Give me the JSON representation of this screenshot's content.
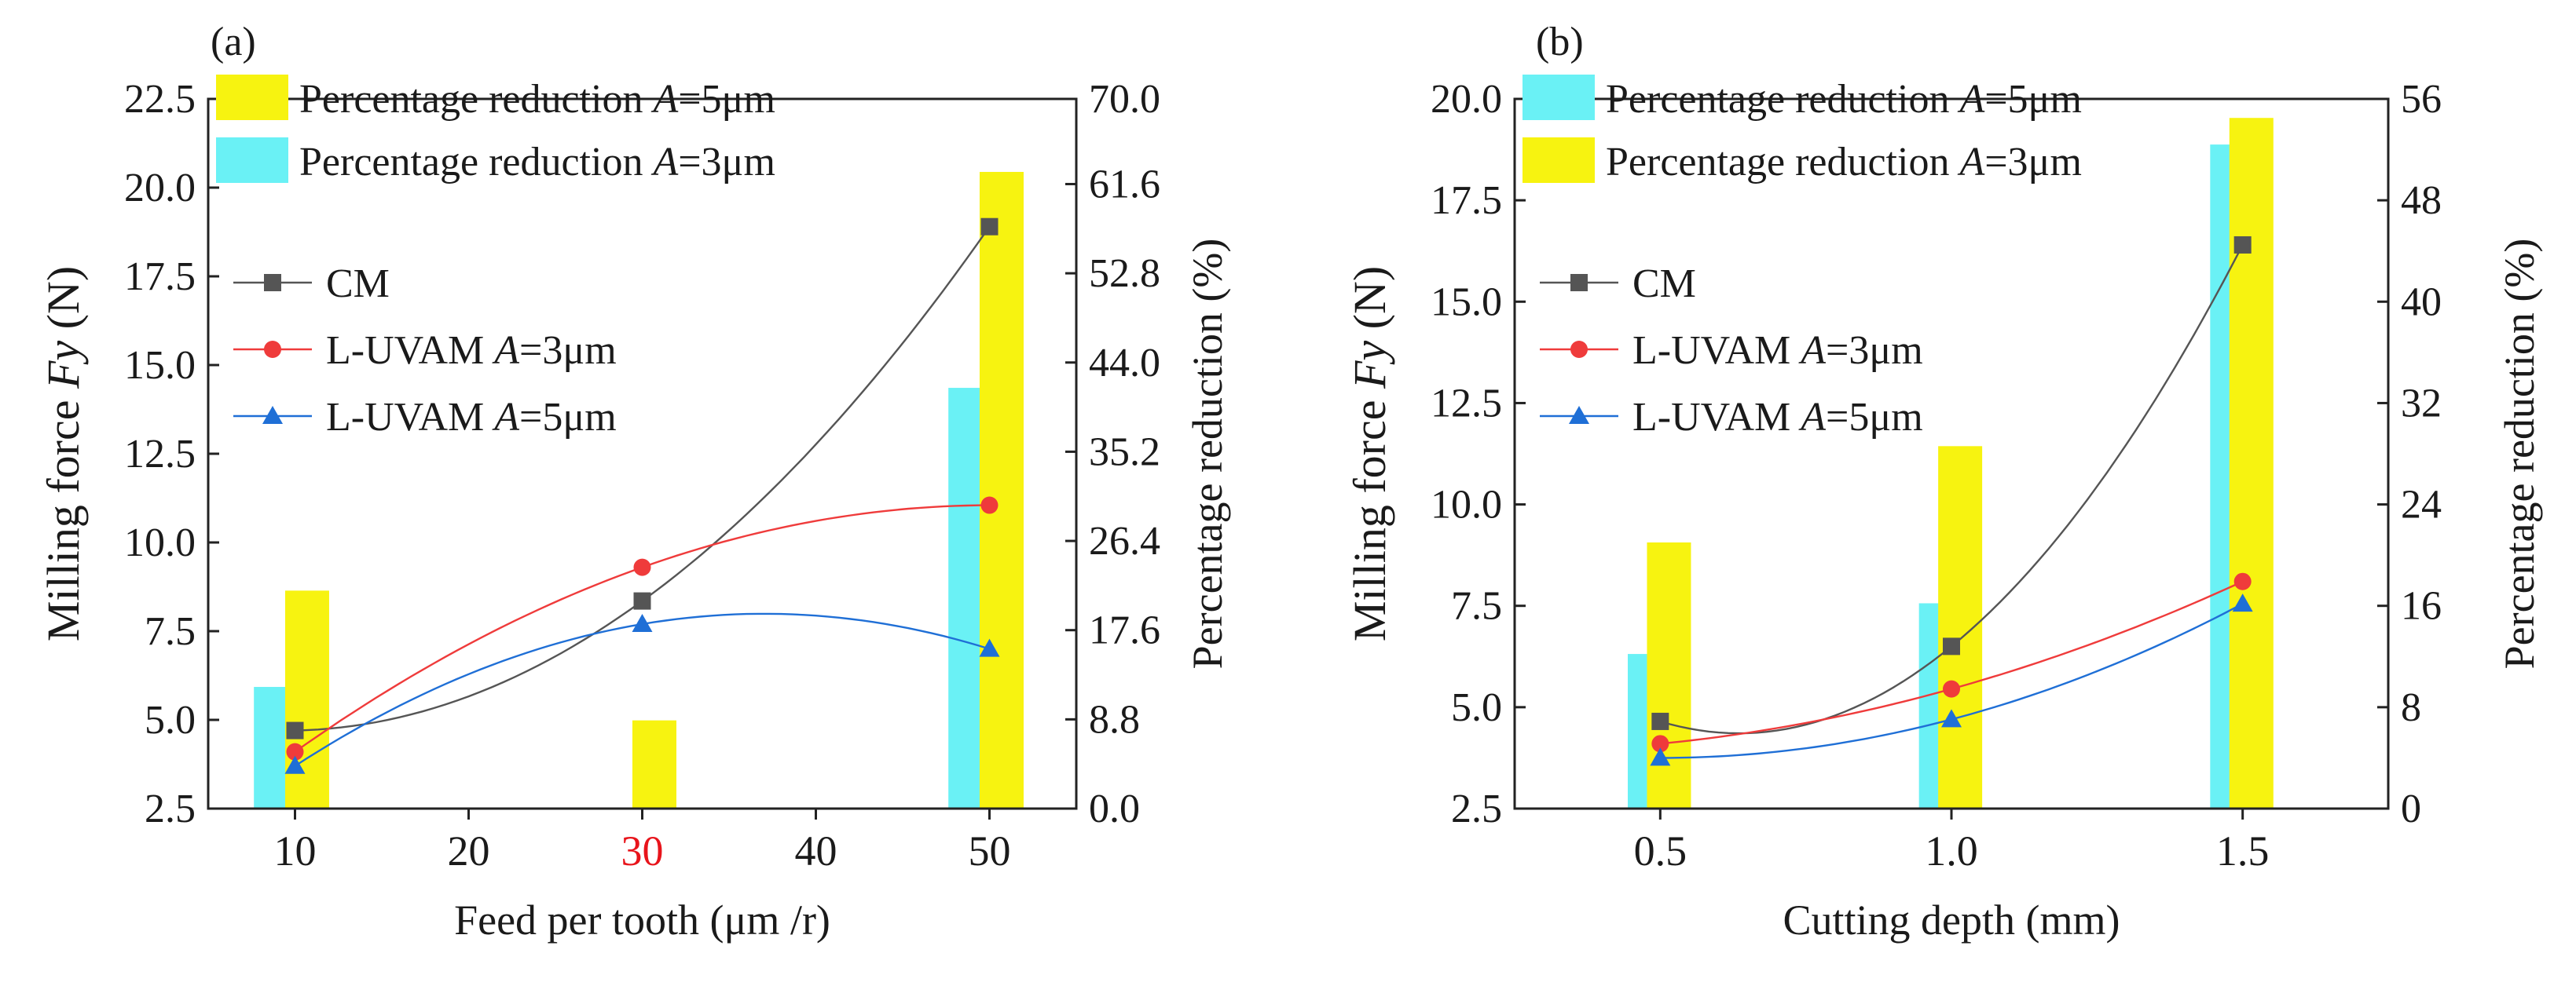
{
  "chart_data": [
    {
      "panel": "(a)",
      "type": "bar+scatter+line",
      "xlabel": "Feed per tooth  (μm /r)",
      "ylabel_left": [
        "Milling force ",
        "Fy",
        " (N)"
      ],
      "ylabel_right": "Percentage reduction (%)",
      "xlim": [
        5,
        55
      ],
      "x_ticks": [
        10,
        20,
        30,
        40,
        50
      ],
      "x_tick_labels": [
        "10",
        "20",
        "30",
        "40",
        "50"
      ],
      "highlight_tick": "30",
      "highlight_color": "#e8141b",
      "ylim_left": [
        2.5,
        22.5
      ],
      "y_ticks_left": [
        "2.5",
        "5.0",
        "7.5",
        "10.0",
        "12.5",
        "15.0",
        "17.5",
        "20.0",
        "22.5"
      ],
      "ylim_right": [
        0,
        70
      ],
      "y_ticks_right": [
        "0.0",
        "8.8",
        "17.6",
        "26.4",
        "35.2",
        "44.0",
        "52.8",
        "61.6",
        "70.0"
      ],
      "bar_series": [
        {
          "name": "Percentage reduction A=3μm",
          "legend_prefix": "Percentage reduction ",
          "legend_var": "A",
          "legend_suffix": "=3μm",
          "color": "#6af1f5",
          "offset": -1.1,
          "x": [
            10,
            30,
            50
          ],
          "values": [
            12,
            null,
            41.5
          ]
        },
        {
          "name": "Percentage reduction A=5μm",
          "legend_prefix": "Percentage reduction ",
          "legend_var": "A",
          "legend_suffix": "=5μm",
          "color": "#f7f310",
          "offset": 0.7,
          "x": [
            10,
            30,
            50
          ],
          "values": [
            21.5,
            8.7,
            62.8
          ]
        }
      ],
      "bar_legend_order": [
        1,
        0
      ],
      "force_series": [
        {
          "name": "CM",
          "legend_prefix": "CM",
          "legend_var": "",
          "legend_suffix": "",
          "color": "#555555",
          "marker": "square",
          "x": [
            10,
            30,
            50
          ],
          "values": [
            4.7,
            8.35,
            18.9
          ]
        },
        {
          "name": "L-UVAM A=3μm",
          "legend_prefix": "L-UVAM ",
          "legend_var": "A",
          "legend_suffix": "=3μm",
          "color": "#ef3b3b",
          "marker": "circle",
          "x": [
            10,
            30,
            50
          ],
          "values": [
            4.1,
            9.3,
            11.05
          ]
        },
        {
          "name": "L-UVAM A=5μm",
          "legend_prefix": "L-UVAM ",
          "legend_var": "A",
          "legend_suffix": "=5μm",
          "color": "#1f6fd6",
          "marker": "triangle",
          "x": [
            10,
            30,
            50
          ],
          "values": [
            3.7,
            7.7,
            7.0
          ]
        }
      ]
    },
    {
      "panel": "(b)",
      "type": "bar+scatter+line",
      "xlabel": "Cutting depth  (mm)",
      "ylabel_left": [
        "Milling force ",
        "Fy",
        " (N)"
      ],
      "ylabel_right": "Percentage reduction (%)",
      "xlim": [
        0.25,
        1.75
      ],
      "x_ticks": [
        0.5,
        1.0,
        1.5
      ],
      "x_tick_labels": [
        "0.5",
        "1.0",
        "1.5"
      ],
      "highlight_tick": "",
      "highlight_color": "#e8141b",
      "ylim_left": [
        2.5,
        20.0
      ],
      "y_ticks_left": [
        "2.5",
        "5.0",
        "7.5",
        "10.0",
        "12.5",
        "15.0",
        "17.5",
        "20.0"
      ],
      "ylim_right": [
        0,
        56
      ],
      "y_ticks_right": [
        "0",
        "8",
        "16",
        "24",
        "32",
        "40",
        "48",
        "56"
      ],
      "bar_series": [
        {
          "name": "Percentage reduction A=5μm",
          "legend_prefix": "Percentage reduction ",
          "legend_var": "A",
          "legend_suffix": "=5μm",
          "color": "#6af1f5",
          "offset": -0.036,
          "x": [
            0.5,
            1.0,
            1.5
          ],
          "values": [
            12.2,
            16.2,
            52.4
          ]
        },
        {
          "name": "Percentage reduction A=3μm",
          "legend_prefix": "Percentage reduction ",
          "legend_var": "A",
          "legend_suffix": "=3μm",
          "color": "#f7f310",
          "offset": 0.03,
          "x": [
            0.5,
            1.0,
            1.5
          ],
          "values": [
            21,
            28.6,
            54.5
          ]
        }
      ],
      "bar_legend_order": [
        0,
        1
      ],
      "force_series": [
        {
          "name": "CM",
          "legend_prefix": "CM",
          "legend_var": "",
          "legend_suffix": "",
          "color": "#555555",
          "marker": "square",
          "x": [
            0.5,
            1.0,
            1.5
          ],
          "values": [
            4.65,
            6.5,
            16.4
          ]
        },
        {
          "name": "L-UVAM A=3μm",
          "legend_prefix": "L-UVAM ",
          "legend_var": "A",
          "legend_suffix": "=3μm",
          "color": "#ef3b3b",
          "marker": "circle",
          "x": [
            0.5,
            1.0,
            1.5
          ],
          "values": [
            4.1,
            5.45,
            8.1
          ]
        },
        {
          "name": "L-UVAM A=5μm",
          "legend_prefix": "L-UVAM ",
          "legend_var": "A",
          "legend_suffix": "=5μm",
          "color": "#1f6fd6",
          "marker": "triangle",
          "x": [
            0.5,
            1.0,
            1.5
          ],
          "values": [
            3.75,
            4.7,
            7.55
          ]
        }
      ]
    }
  ]
}
